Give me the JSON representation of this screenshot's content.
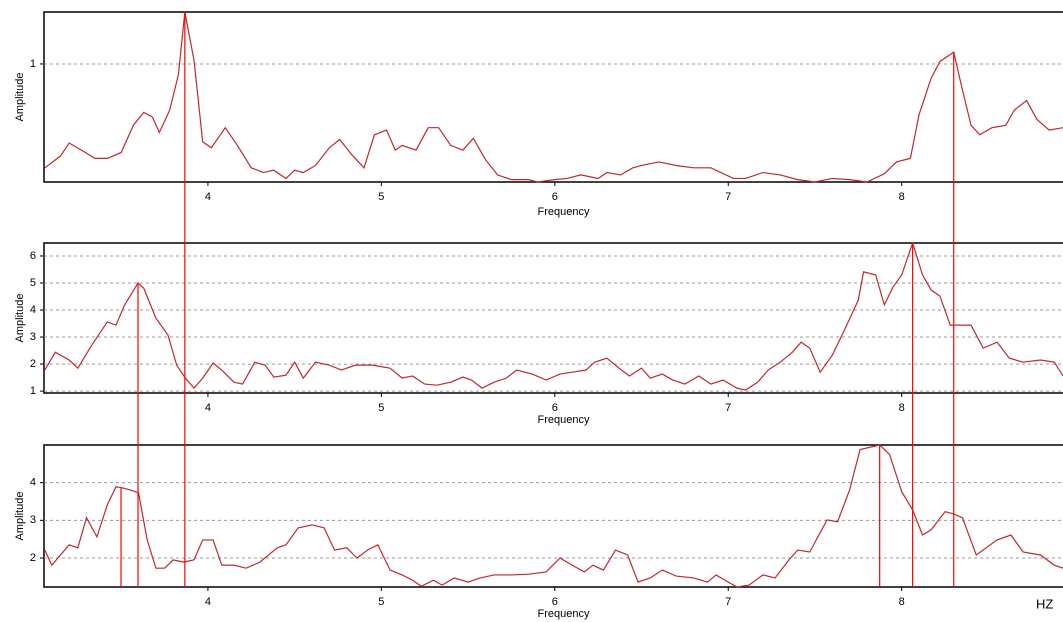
{
  "chart_data": [
    {
      "type": "line",
      "xlabel": "Frequency",
      "ylabel": "Amplitude",
      "color": "#c0282c",
      "peak_color": "#ff0000",
      "grid": true,
      "xlim": [
        3.055,
        8.93
      ],
      "ylim": [
        0,
        1.44
      ],
      "xticks": [
        4,
        5,
        6,
        7,
        8
      ],
      "yticks": [
        1
      ],
      "x": [
        3.06,
        3.15,
        3.2,
        3.27,
        3.35,
        3.42,
        3.5,
        3.57,
        3.63,
        3.68,
        3.72,
        3.78,
        3.83,
        3.867,
        3.92,
        3.97,
        4.02,
        4.1,
        4.17,
        4.25,
        4.32,
        4.38,
        4.45,
        4.5,
        4.55,
        4.62,
        4.7,
        4.76,
        4.83,
        4.9,
        4.96,
        5.03,
        5.08,
        5.12,
        5.2,
        5.27,
        5.33,
        5.4,
        5.47,
        5.53,
        5.6,
        5.67,
        5.75,
        5.85,
        5.9,
        6.0,
        6.07,
        6.15,
        6.25,
        6.3,
        6.38,
        6.45,
        6.5,
        6.6,
        6.7,
        6.8,
        6.9,
        7.03,
        7.1,
        7.2,
        7.3,
        7.4,
        7.5,
        7.6,
        7.7,
        7.8,
        7.9,
        7.97,
        8.05,
        8.1,
        8.17,
        8.22,
        8.3,
        8.35,
        8.4,
        8.45,
        8.52,
        8.6,
        8.65,
        8.72,
        8.78,
        8.85,
        8.93
      ],
      "values": [
        0.12,
        0.22,
        0.33,
        0.27,
        0.2,
        0.2,
        0.25,
        0.48,
        0.59,
        0.55,
        0.42,
        0.61,
        0.91,
        1.44,
        1.03,
        0.34,
        0.29,
        0.46,
        0.31,
        0.12,
        0.08,
        0.1,
        0.03,
        0.1,
        0.08,
        0.14,
        0.29,
        0.36,
        0.23,
        0.12,
        0.4,
        0.44,
        0.27,
        0.31,
        0.27,
        0.46,
        0.46,
        0.31,
        0.27,
        0.37,
        0.19,
        0.06,
        0.02,
        0.02,
        0,
        0.02,
        0.03,
        0.06,
        0.03,
        0.08,
        0.06,
        0.12,
        0.14,
        0.17,
        0.14,
        0.12,
        0.12,
        0.03,
        0.03,
        0.08,
        0.06,
        0.02,
        0,
        0.03,
        0.02,
        0,
        0.07,
        0.17,
        0.2,
        0.57,
        0.88,
        1.02,
        1.1,
        0.78,
        0.48,
        0.4,
        0.46,
        0.48,
        0.61,
        0.69,
        0.53,
        0.44,
        0.46
      ],
      "peaks": [
        {
          "x": 3.867,
          "y": 1.44
        },
        {
          "x": 8.3,
          "y": 1.1
        }
      ]
    },
    {
      "type": "line",
      "xlabel": "Frequency",
      "ylabel": "Amplitude",
      "color": "#c0282c",
      "peak_color": "#ff0000",
      "grid": true,
      "xlim": [
        3.055,
        8.93
      ],
      "ylim": [
        0.93,
        6.48
      ],
      "xticks": [
        4,
        5,
        6,
        7,
        8
      ],
      "yticks": [
        1,
        2,
        3,
        4,
        5,
        6
      ],
      "x": [
        3.06,
        3.12,
        3.2,
        3.25,
        3.33,
        3.42,
        3.47,
        3.52,
        3.597,
        3.63,
        3.7,
        3.77,
        3.82,
        3.87,
        3.92,
        3.97,
        4.03,
        4.08,
        4.15,
        4.2,
        4.27,
        4.33,
        4.38,
        4.45,
        4.5,
        4.55,
        4.62,
        4.7,
        4.77,
        4.85,
        4.95,
        5.05,
        5.12,
        5.18,
        5.25,
        5.32,
        5.4,
        5.47,
        5.52,
        5.58,
        5.65,
        5.72,
        5.78,
        5.87,
        5.95,
        6.03,
        6.1,
        6.18,
        6.23,
        6.3,
        6.37,
        6.43,
        6.5,
        6.55,
        6.62,
        6.68,
        6.75,
        6.83,
        6.9,
        6.97,
        7.05,
        7.1,
        7.17,
        7.23,
        7.3,
        7.37,
        7.42,
        7.47,
        7.53,
        7.6,
        7.67,
        7.75,
        7.78,
        7.85,
        7.9,
        7.95,
        8.0,
        8.063,
        8.12,
        8.17,
        8.22,
        8.28,
        8.35,
        8.4,
        8.47,
        8.55,
        8.62,
        8.7,
        8.8,
        8.88,
        8.93
      ],
      "values": [
        1.78,
        2.44,
        2.15,
        1.85,
        2.7,
        3.56,
        3.44,
        4.19,
        5.0,
        4.81,
        3.7,
        3.07,
        1.96,
        1.48,
        1.11,
        1.48,
        2.04,
        1.78,
        1.33,
        1.26,
        2.07,
        1.96,
        1.52,
        1.59,
        2.07,
        1.48,
        2.07,
        1.96,
        1.78,
        1.96,
        1.96,
        1.85,
        1.48,
        1.56,
        1.26,
        1.22,
        1.33,
        1.52,
        1.41,
        1.11,
        1.33,
        1.48,
        1.78,
        1.63,
        1.41,
        1.63,
        1.7,
        1.78,
        2.07,
        2.22,
        1.85,
        1.56,
        1.85,
        1.48,
        1.63,
        1.41,
        1.26,
        1.56,
        1.26,
        1.41,
        1.11,
        1.04,
        1.33,
        1.78,
        2.07,
        2.44,
        2.81,
        2.59,
        1.7,
        2.33,
        3.26,
        4.37,
        5.41,
        5.3,
        4.19,
        4.85,
        5.3,
        6.48,
        5.3,
        4.74,
        4.52,
        3.44,
        3.44,
        3.44,
        2.59,
        2.81,
        2.22,
        2.07,
        2.15,
        2.07,
        1.56
      ],
      "peaks": [
        {
          "x": 3.597,
          "y": 5.0
        },
        {
          "x": 8.063,
          "y": 6.48
        }
      ]
    },
    {
      "type": "line",
      "xlabel": "Frequency",
      "ylabel": "Amplitude",
      "x_unit": "HZ",
      "color": "#c0282c",
      "peak_color": "#ff0000",
      "grid": true,
      "xlim": [
        3.055,
        8.93
      ],
      "ylim": [
        1.23,
        5.0
      ],
      "xticks": [
        4,
        5,
        6,
        7,
        8
      ],
      "yticks": [
        2,
        3,
        4
      ],
      "x": [
        3.06,
        3.1,
        3.15,
        3.2,
        3.25,
        3.3,
        3.36,
        3.42,
        3.47,
        3.499,
        3.55,
        3.6,
        3.65,
        3.7,
        3.75,
        3.8,
        3.86,
        3.92,
        3.97,
        4.03,
        4.08,
        4.15,
        4.22,
        4.3,
        4.4,
        4.45,
        4.52,
        4.6,
        4.67,
        4.73,
        4.8,
        4.86,
        4.92,
        4.98,
        5.05,
        5.12,
        5.18,
        5.23,
        5.3,
        5.35,
        5.42,
        5.5,
        5.57,
        5.65,
        5.75,
        5.85,
        5.95,
        6.03,
        6.1,
        6.17,
        6.22,
        6.28,
        6.35,
        6.42,
        6.48,
        6.55,
        6.62,
        6.7,
        6.8,
        6.88,
        6.93,
        7.0,
        7.05,
        7.12,
        7.2,
        7.27,
        7.35,
        7.4,
        7.47,
        7.52,
        7.57,
        7.63,
        7.7,
        7.76,
        7.873,
        7.93,
        8.0,
        8.063,
        8.12,
        8.17,
        8.25,
        8.3,
        8.35,
        8.43,
        8.55,
        8.63,
        8.7,
        8.8,
        8.88,
        8.93
      ],
      "values": [
        2.21,
        1.81,
        2.08,
        2.35,
        2.27,
        3.07,
        2.56,
        3.41,
        3.89,
        3.87,
        3.81,
        3.73,
        2.48,
        1.73,
        1.73,
        1.95,
        1.89,
        1.95,
        2.48,
        2.48,
        1.81,
        1.81,
        1.73,
        1.89,
        2.27,
        2.35,
        2.8,
        2.88,
        2.8,
        2.21,
        2.27,
        2.0,
        2.21,
        2.35,
        1.68,
        1.55,
        1.41,
        1.25,
        1.41,
        1.28,
        1.47,
        1.36,
        1.47,
        1.55,
        1.55,
        1.57,
        1.63,
        2.0,
        1.81,
        1.63,
        1.81,
        1.68,
        2.21,
        2.08,
        1.36,
        1.47,
        1.68,
        1.52,
        1.47,
        1.36,
        1.55,
        1.36,
        1.23,
        1.28,
        1.55,
        1.47,
        1.95,
        2.21,
        2.16,
        2.59,
        3.01,
        2.96,
        3.81,
        4.88,
        5.0,
        4.75,
        3.76,
        3.28,
        2.61,
        2.75,
        3.23,
        3.17,
        3.07,
        2.08,
        2.48,
        2.61,
        2.16,
        2.08,
        1.81,
        1.73
      ],
      "peaks": [
        {
          "x": 3.499,
          "y": 3.87
        },
        {
          "x": 7.873,
          "y": 5.0
        }
      ]
    }
  ]
}
